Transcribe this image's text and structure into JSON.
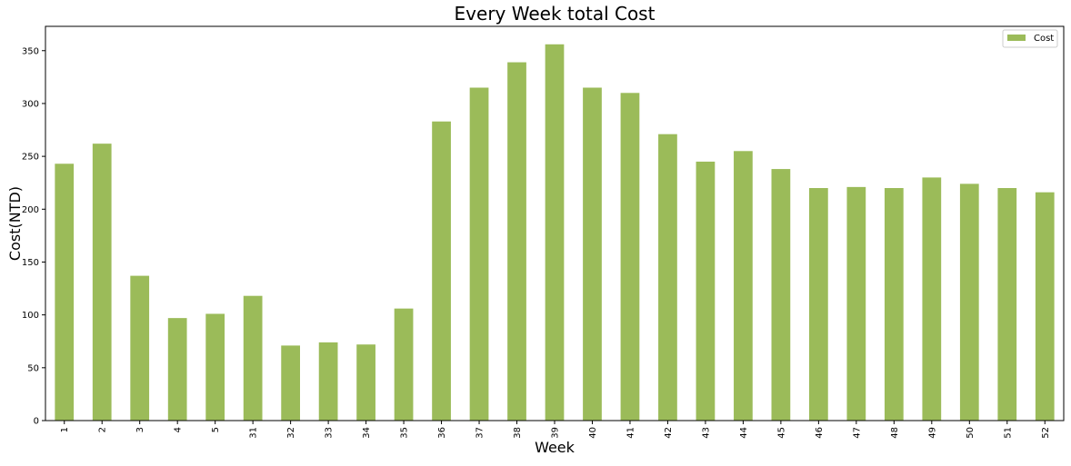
{
  "chart_data": {
    "type": "bar",
    "title": "Every Week total Cost",
    "xlabel": "Week",
    "ylabel": "Cost(NTD)",
    "categories": [
      "1",
      "2",
      "3",
      "4",
      "5",
      "31",
      "32",
      "33",
      "34",
      "35",
      "36",
      "37",
      "38",
      "39",
      "40",
      "41",
      "42",
      "43",
      "44",
      "45",
      "46",
      "47",
      "48",
      "49",
      "50",
      "51",
      "52"
    ],
    "series": [
      {
        "name": "Cost",
        "color": "#9bbb59",
        "values": [
          243,
          262,
          137,
          97,
          101,
          118,
          71,
          74,
          72,
          106,
          283,
          315,
          339,
          356,
          315,
          310,
          271,
          245,
          255,
          238,
          220,
          221,
          220,
          230,
          224,
          220,
          216
        ]
      }
    ],
    "ylim": [
      0,
      373
    ],
    "yticks": [
      0,
      50,
      100,
      150,
      200,
      250,
      300,
      350
    ],
    "grid": false,
    "legend_position": "top-right",
    "xtick_rotation": "vertical"
  }
}
